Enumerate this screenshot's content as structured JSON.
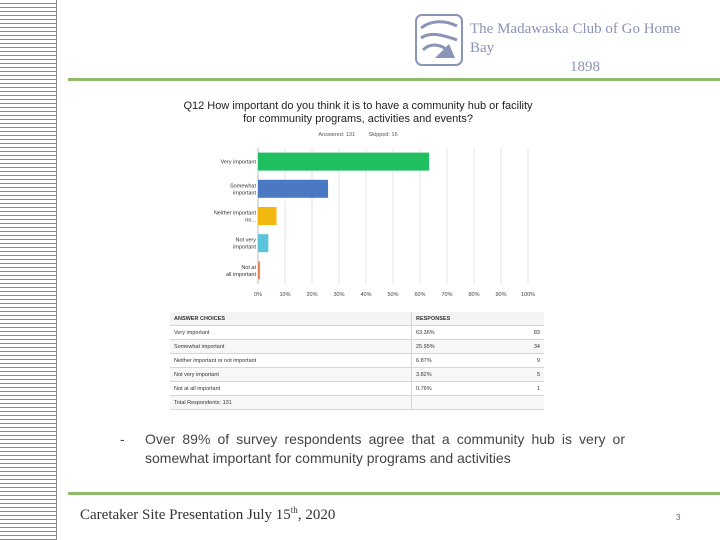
{
  "header": {
    "org_name": "The Madawaska Club of Go Home Bay",
    "org_year": "1898"
  },
  "survey": {
    "question_line1": "Q12 How important do you think it is to have a community hub or facility",
    "question_line2": "for community programs, activities and events?",
    "answered": "Answered: 131",
    "skipped": "Skipped: 16"
  },
  "chart_data": {
    "type": "bar",
    "orientation": "horizontal",
    "categories": [
      "Very important",
      "Somewhat important",
      "Neither important no...",
      "Not very important",
      "Not at all important"
    ],
    "values": [
      63.36,
      25.95,
      6.87,
      3.82,
      0.76
    ],
    "colors": [
      "#1fbf5f",
      "#4a78c2",
      "#f2b80f",
      "#5bc4d8",
      "#e58a5c"
    ],
    "xlim": [
      0,
      100
    ],
    "ticks": [
      "0%",
      "10%",
      "20%",
      "30%",
      "40%",
      "50%",
      "60%",
      "70%",
      "80%",
      "90%",
      "100%"
    ],
    "grid": true
  },
  "table": {
    "headers": [
      "ANSWER CHOICES",
      "RESPONSES"
    ],
    "rows": [
      {
        "choice": "Very important",
        "pct": "63.36%",
        "count": "83"
      },
      {
        "choice": "Somewhat important",
        "pct": "25.95%",
        "count": "34"
      },
      {
        "choice": "Neither important or not important",
        "pct": "6.87%",
        "count": "9"
      },
      {
        "choice": "Not very important",
        "pct": "3.82%",
        "count": "5"
      },
      {
        "choice": "Not at all important",
        "pct": "0.76%",
        "count": "1"
      }
    ],
    "total": "Total Respondents: 131"
  },
  "bullet": {
    "marker": "-",
    "text": "Over 89% of survey respondents agree that a community hub is very or somewhat important for community programs and activities"
  },
  "footer": {
    "title": "Caretaker Site Presentation July 15",
    "superscript": "th",
    "title_end": ", 2020",
    "page_number": "3"
  }
}
